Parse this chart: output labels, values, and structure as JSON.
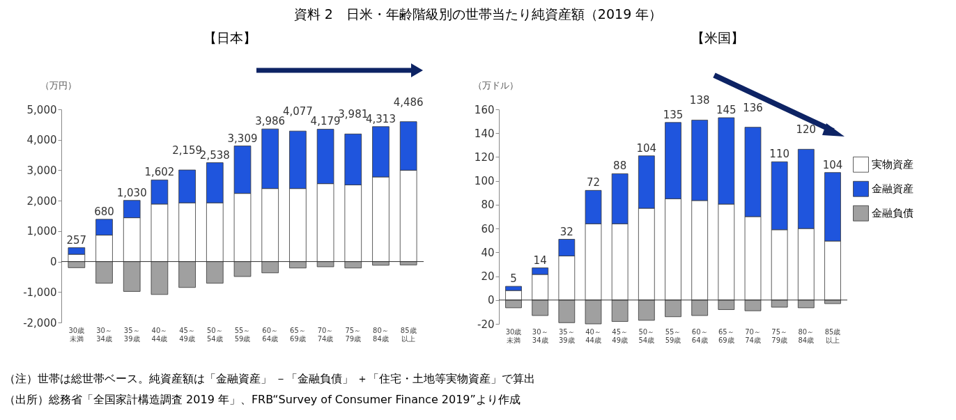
{
  "chart_data": [
    {
      "type": "bar",
      "title": "資料 2　日米・年齢階級別の世帯当たり純資産額（2019 年）",
      "subtitle": "【日本】",
      "ylabel": "（万円）",
      "categories": [
        "30歳未満",
        "30～34歳",
        "35～39歳",
        "40～44歳",
        "45～49歳",
        "50～54歳",
        "55～59歳",
        "60～64歳",
        "65～69歳",
        "70～74歳",
        "75～79歳",
        "80～84歳",
        "85歳以上"
      ],
      "stacked": true,
      "series": [
        {
          "color": "#ffffff",
          "values": [
            240,
            870,
            1440,
            1890,
            1930,
            1930,
            2240,
            2400,
            2400,
            2560,
            2520,
            2780,
            3000
          ]
        },
        {
          "color": "#1f55dd",
          "values": [
            217,
            520,
            570,
            792,
            1079,
            1318,
            1559,
            1956,
            1887,
            1789,
            1671,
            1653,
            1596
          ]
        },
        {
          "color": "#a0a0a0",
          "values": [
            -200,
            -710,
            -980,
            -1080,
            -850,
            -710,
            -490,
            -370,
            -210,
            -170,
            -210,
            -120,
            -110
          ]
        }
      ],
      "totals": [
        "257",
        "680",
        "1,030",
        "1,602",
        "2,159",
        "2,538",
        "3,309",
        "3,986",
        "4,077",
        "4,179",
        "3,981",
        "4,313",
        "4,486"
      ],
      "ylim": [
        -2000,
        5000
      ],
      "yticks": [
        {
          "value": -2000,
          "label": "-2,000"
        },
        {
          "value": -1000,
          "label": "-1,000"
        },
        0,
        {
          "value": 1000,
          "label": "1,000"
        },
        {
          "value": 2000,
          "label": "2,000"
        },
        {
          "value": 3000,
          "label": "3,000"
        },
        {
          "value": 4000,
          "label": "4,000"
        },
        {
          "value": 5000,
          "label": "5,000"
        }
      ],
      "ref_lines": [
        {
          "axis": "y",
          "value": 0
        }
      ]
    },
    {
      "type": "bar",
      "title": "【米国】",
      "ylabel": "（万ドル）",
      "categories": [
        "30歳未満",
        "30～34歳",
        "35～39歳",
        "40～44歳",
        "45～49歳",
        "50～54歳",
        "55～59歳",
        "60～64歳",
        "65～69歳",
        "70～74歳",
        "75～79歳",
        "80～84歳",
        "85歳以上"
      ],
      "stacked": true,
      "series": [
        {
          "name": "実物資産",
          "color": "#ffffff",
          "values": [
            8,
            21.5,
            37,
            64,
            64,
            77,
            85,
            83.5,
            80.5,
            70,
            59,
            60,
            49.5
          ]
        },
        {
          "name": "金融資産",
          "color": "#1f55dd",
          "values": [
            3.5,
            5.5,
            14,
            28,
            42,
            44,
            64,
            67.5,
            72.5,
            75,
            57,
            66.5,
            57.5
          ]
        },
        {
          "name": "金融負債",
          "color": "#a0a0a0",
          "values": [
            -6.5,
            -13,
            -19,
            -20,
            -18,
            -17,
            -14,
            -13,
            -8,
            -9,
            -6,
            -6.5,
            -3
          ]
        }
      ],
      "totals": [
        "5",
        "14",
        "32",
        "72",
        "88",
        "104",
        "135",
        "138",
        "145",
        "136",
        "110",
        "120",
        "104"
      ],
      "ylim": [
        -20,
        160
      ],
      "yticks": [
        -20,
        0,
        20,
        40,
        60,
        80,
        100,
        120,
        140,
        160
      ],
      "ref_lines": [
        {
          "axis": "y",
          "value": 0
        }
      ],
      "legend": "right",
      "annotations": [
        "（注）世帯は総世帯ベース。純資産額は「金融資産」 －「金融負債」 ＋「住宅・土地等実物資産」で算出",
        "（出所）総務省「全国家計構造調査 2019 年」、FRB“Survey of Consumer Finance 2019”より作成"
      ]
    }
  ]
}
